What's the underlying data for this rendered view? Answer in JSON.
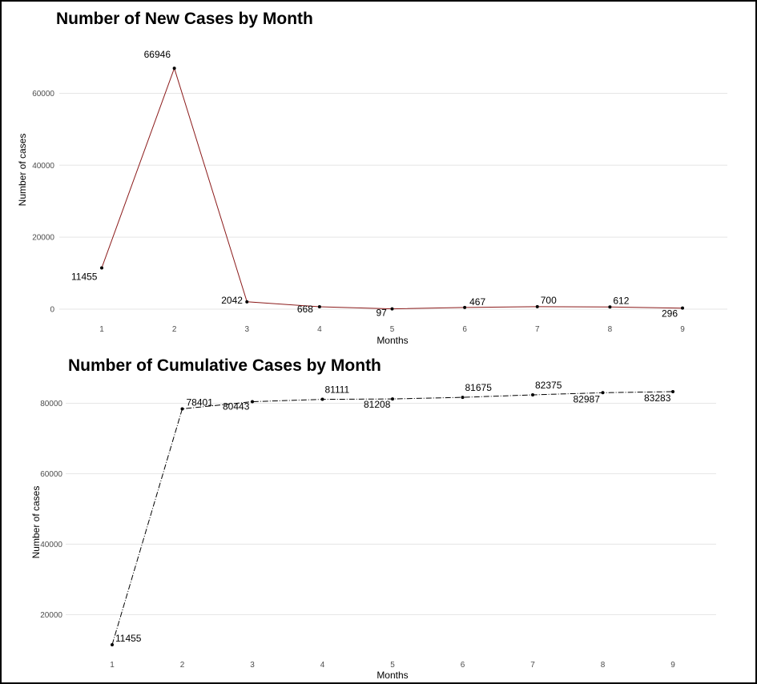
{
  "chart_data": [
    {
      "type": "line",
      "title": "Number of New Cases by Month",
      "xlabel": "Months",
      "ylabel": "Number of cases",
      "x": [
        1,
        2,
        3,
        4,
        5,
        6,
        7,
        8,
        9
      ],
      "values": [
        11455,
        66946,
        2042,
        668,
        97,
        467,
        700,
        612,
        296
      ],
      "data_labels": [
        "11455",
        "66946",
        "2042",
        "668",
        "97",
        "467",
        "700",
        "612",
        "296"
      ],
      "xticks": [
        "1",
        "2",
        "3",
        "4",
        "5",
        "6",
        "7",
        "8",
        "9"
      ],
      "yticks": [
        0,
        20000,
        40000,
        60000
      ],
      "ylim": [
        0,
        67000
      ],
      "xlim": [
        1,
        9
      ],
      "line_color": "#8b1a1a",
      "line_style": "solid",
      "grid": true
    },
    {
      "type": "line",
      "title": "Number of Cumulative Cases by Month",
      "xlabel": "Months",
      "ylabel": "Number of cases",
      "x": [
        1,
        2,
        3,
        4,
        5,
        6,
        7,
        8,
        9
      ],
      "values": [
        11455,
        78401,
        80443,
        81111,
        81208,
        81675,
        82375,
        82987,
        83283
      ],
      "data_labels": [
        "11455",
        "78401",
        "80443",
        "81111",
        "81208",
        "81675",
        "82375",
        "82987",
        "83283"
      ],
      "xticks": [
        "1",
        "2",
        "3",
        "4",
        "5",
        "6",
        "7",
        "8",
        "9"
      ],
      "yticks": [
        20000,
        40000,
        60000,
        80000
      ],
      "ylim": [
        11455,
        83283
      ],
      "xlim": [
        1,
        9
      ],
      "line_color": "#000000",
      "line_style": "dashdot",
      "grid": true
    }
  ]
}
